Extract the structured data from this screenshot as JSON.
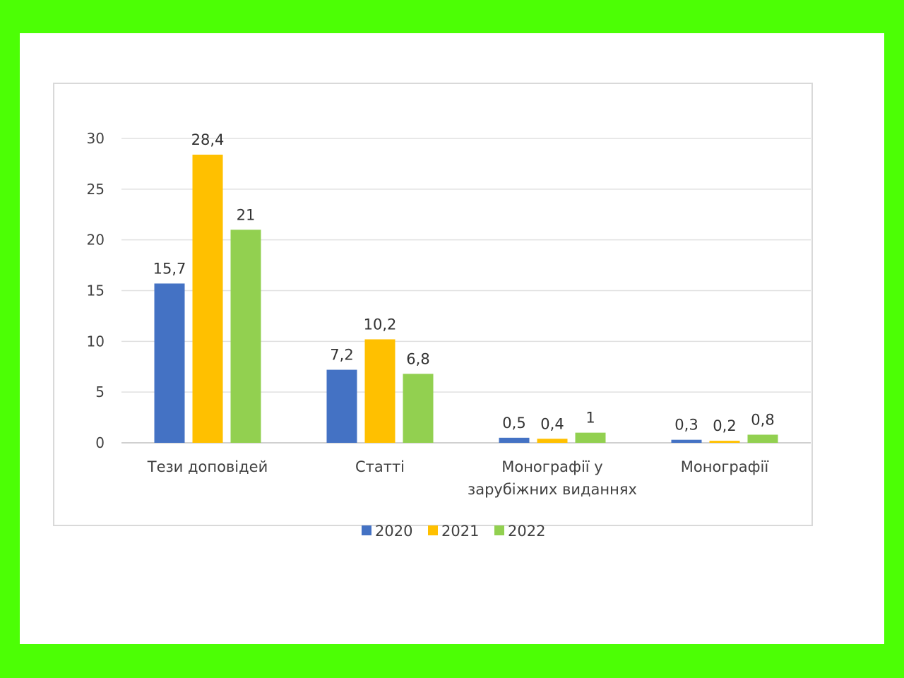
{
  "chart_data": {
    "type": "bar",
    "categories": [
      [
        "Тези доповідей"
      ],
      [
        "Статті"
      ],
      [
        "Монографії у",
        "зарубіжних виданнях"
      ],
      [
        "Монографії"
      ]
    ],
    "series": [
      {
        "name": "2020",
        "color": "#4472c4",
        "values": [
          15.7,
          7.2,
          0.5,
          0.3
        ],
        "labels": [
          "15,7",
          "7,2",
          "0,5",
          "0,3"
        ]
      },
      {
        "name": "2021",
        "color": "#ffc000",
        "values": [
          28.4,
          10.2,
          0.4,
          0.2
        ],
        "labels": [
          "28,4",
          "10,2",
          "0,4",
          "0,2"
        ]
      },
      {
        "name": "2022",
        "color": "#92d050",
        "values": [
          21,
          6.8,
          1,
          0.8
        ],
        "labels": [
          "21",
          "6,8",
          "1",
          "0,8"
        ]
      }
    ],
    "yticks": [
      "0",
      "5",
      "10",
      "15",
      "20",
      "25",
      "30"
    ],
    "ylim": [
      0,
      30
    ],
    "grid": true,
    "legend": "bottom-center"
  }
}
